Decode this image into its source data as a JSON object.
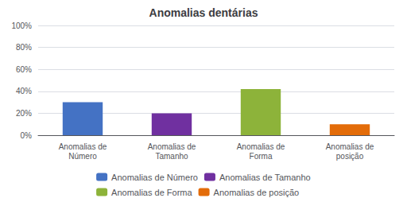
{
  "chart_data": {
    "type": "bar",
    "title": "Anomalias dentárias",
    "categories": [
      "Anomalias de\nNúmero",
      "Anomalias de\nTamanho",
      "Anomalias de\nForma",
      "Anomalias de\nposição"
    ],
    "series": [
      {
        "name": "Anomalias de Número",
        "color": "#4472C4",
        "values": [
          0.3,
          null,
          null,
          null
        ]
      },
      {
        "name": "Anomalias de Tamanho",
        "color": "#7030A0",
        "values": [
          null,
          0.2,
          null,
          null
        ]
      },
      {
        "name": "Anomalias de Forma",
        "color": "#8DB33A",
        "values": [
          null,
          null,
          0.42,
          null
        ]
      },
      {
        "name": "Anomalias de posição",
        "color": "#E36C09",
        "values": [
          null,
          null,
          null,
          0.1
        ]
      }
    ],
    "ylim": [
      0,
      1.0
    ],
    "yticks": [
      {
        "value": 0.0,
        "label": "0%"
      },
      {
        "value": 0.2,
        "label": "20%"
      },
      {
        "value": 0.4,
        "label": "40%"
      },
      {
        "value": 0.6,
        "label": "60%"
      },
      {
        "value": 0.8,
        "label": "80%"
      },
      {
        "value": 1.0,
        "label": "100%"
      }
    ],
    "grid": true,
    "legend": "bottom"
  }
}
